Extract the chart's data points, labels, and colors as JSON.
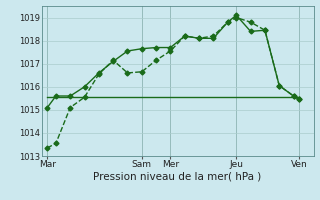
{
  "title": "",
  "xlabel": "Pression niveau de la mer( hPa )",
  "bg_color": "#cce8ee",
  "grid_color": "#aacccc",
  "line_color": "#1a6b1a",
  "ylim": [
    1013,
    1019.5
  ],
  "yticks": [
    1013,
    1014,
    1015,
    1016,
    1017,
    1018,
    1019
  ],
  "xlim": [
    0,
    9.5
  ],
  "xtick_labels": [
    "Mar",
    "Sam",
    "Mer",
    "Jeu",
    "Ven"
  ],
  "xtick_positions": [
    0.2,
    3.5,
    4.5,
    6.8,
    9.0
  ],
  "vline_positions": [
    0.2,
    3.5,
    4.5,
    6.8,
    9.0
  ],
  "series1_x": [
    0.2,
    0.5,
    1.0,
    1.5,
    2.0,
    2.5,
    3.0,
    3.5,
    4.0,
    4.5,
    5.0,
    5.5,
    6.0,
    6.5,
    6.8,
    7.3,
    7.8,
    8.3,
    8.8,
    9.0
  ],
  "series1_y": [
    1013.35,
    1013.55,
    1015.1,
    1015.55,
    1016.55,
    1017.15,
    1016.6,
    1016.65,
    1017.15,
    1017.55,
    1018.2,
    1018.1,
    1018.2,
    1018.8,
    1019.0,
    1018.8,
    1018.45,
    1016.05,
    1015.6,
    1015.45
  ],
  "series2_x": [
    0.2,
    0.5,
    1.0,
    1.5,
    2.0,
    2.5,
    3.0,
    3.5,
    4.0,
    4.5,
    5.0,
    5.5,
    6.0,
    6.5,
    6.8,
    7.3,
    7.8,
    8.3,
    8.8,
    9.0
  ],
  "series2_y": [
    1015.1,
    1015.6,
    1015.6,
    1016.0,
    1016.6,
    1017.1,
    1017.55,
    1017.65,
    1017.7,
    1017.7,
    1018.2,
    1018.1,
    1018.1,
    1018.8,
    1019.1,
    1018.4,
    1018.45,
    1016.05,
    1015.6,
    1015.45
  ],
  "series3_x": [
    0.2,
    3.5,
    4.5,
    6.8,
    9.0
  ],
  "series3_y": [
    1015.55,
    1015.55,
    1015.55,
    1015.55,
    1015.55
  ],
  "marker_size": 2.5,
  "linewidth": 1.0,
  "ytick_fontsize": 6,
  "xtick_fontsize": 6.5,
  "xlabel_fontsize": 7.5
}
